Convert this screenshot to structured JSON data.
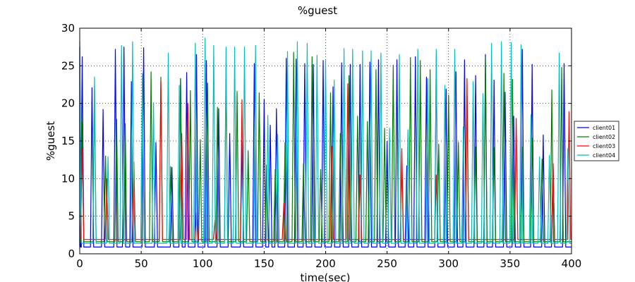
{
  "chart_data": {
    "type": "line",
    "title": "%guest",
    "xlabel": "time(sec)",
    "ylabel": "%guest",
    "xlim": [
      0,
      400
    ],
    "ylim": [
      0,
      30
    ],
    "xticks": [
      0,
      50,
      100,
      150,
      200,
      250,
      300,
      350,
      400
    ],
    "yticks": [
      0,
      5,
      10,
      15,
      20,
      25,
      30
    ],
    "grid": true,
    "legend_position": "right",
    "series": [
      {
        "name": "client01",
        "color": "#0000ff",
        "baseline": 0.9,
        "x": [
          0,
          2,
          10,
          19,
          29,
          36,
          42,
          52,
          62,
          75,
          82,
          87,
          95,
          103,
          113,
          122,
          132,
          142,
          150,
          155,
          160,
          168,
          176,
          183,
          190,
          198,
          206,
          213,
          220,
          228,
          236,
          243,
          250,
          258,
          266,
          273,
          282,
          290,
          298,
          306,
          313,
          322,
          330,
          337,
          346,
          353,
          360,
          368,
          377,
          385,
          394
        ],
        "y": [
          27.5,
          26.2,
          22.1,
          19.2,
          27.2,
          27.5,
          22.9,
          27.4,
          14.8,
          11.5,
          23.3,
          24.1,
          26.5,
          25.7,
          19.3,
          16.0,
          14.9,
          25.3,
          20.5,
          17.1,
          19.3,
          26.0,
          25.9,
          25.3,
          25.2,
          25.7,
          22.2,
          25.4,
          25.2,
          25.2,
          25.5,
          25.8,
          14.9,
          25.8,
          11.7,
          26.2,
          23.5,
          26.0,
          21.9,
          24.2,
          25.8,
          23.7,
          26.5,
          23.1,
          21.5,
          18.3,
          27.2,
          25.2,
          15.8,
          11.9,
          25.3
        ]
      },
      {
        "name": "client02",
        "color": "#008000",
        "baseline": 1.6,
        "x": [
          2,
          12,
          21,
          30,
          37,
          44,
          51,
          58,
          66,
          74,
          82,
          90,
          98,
          104,
          112,
          119,
          128,
          137,
          146,
          152,
          159,
          167,
          174,
          182,
          189,
          196,
          204,
          212,
          219,
          226,
          234,
          241,
          248,
          255,
          262,
          269,
          277,
          285,
          292,
          300,
          308,
          315,
          322,
          330,
          337,
          345,
          352,
          360,
          368,
          376,
          384,
          392
        ],
        "y": [
          17.4,
          22.2,
          13.0,
          17.9,
          17.3,
          12.2,
          23.8,
          24.2,
          23.5,
          11.6,
          23.3,
          21.7,
          15.2,
          22.7,
          19.5,
          24.2,
          21.6,
          13.7,
          21.4,
          11.8,
          11.2,
          14.8,
          26.8,
          12.0,
          26.2,
          11.2,
          21.4,
          16.0,
          23.7,
          18.3,
          17.6,
          24.5,
          16.7,
          25.1,
          12.1,
          26.1,
          25.7,
          24.5,
          14.6,
          21.1,
          14.8,
          21.0,
          14.2,
          26.1,
          14.1,
          24.0,
          23.2,
          14.2,
          15.4,
          12.6,
          21.8,
          24.8
        ]
      },
      {
        "name": "client03",
        "color": "#ff0000",
        "baseline": 1.9,
        "x": [
          2,
          22,
          44,
          66,
          83,
          88,
          95,
          110,
          132,
          166,
          205,
          218,
          228,
          262,
          283,
          290,
          315,
          355,
          385,
          398
        ],
        "y": [
          14.0,
          10.0,
          10.0,
          23.0,
          16.0,
          20.0,
          5.5,
          4.5,
          20.5,
          6.7,
          14.3,
          22.6,
          10.5,
          14.0,
          23.3,
          10.5,
          23.3,
          18.0,
          12.0,
          18.9
        ]
      },
      {
        "name": "client04",
        "color": "#00bfbf",
        "baseline": 1.4,
        "x": [
          0,
          12,
          23,
          34,
          43,
          51,
          60,
          72,
          81,
          94,
          102,
          109,
          119,
          126,
          134,
          143,
          153,
          161,
          169,
          177,
          185,
          193,
          200,
          207,
          215,
          222,
          230,
          237,
          245,
          252,
          260,
          267,
          275,
          283,
          290,
          297,
          305,
          312,
          320,
          328,
          335,
          343,
          351,
          359,
          367,
          374,
          382,
          390,
          397
        ],
        "y": [
          28.3,
          23.5,
          12.9,
          27.7,
          28.2,
          24.0,
          20.1,
          26.7,
          22.4,
          28.0,
          28.7,
          27.7,
          27.5,
          27.5,
          27.5,
          27.7,
          18.4,
          15.9,
          26.9,
          28.2,
          28.0,
          26.4,
          25.7,
          23.1,
          27.3,
          27.2,
          27.0,
          27.0,
          26.7,
          16.7,
          26.5,
          16.5,
          27.2,
          23.3,
          27.2,
          22.4,
          27.2,
          16.9,
          22.9,
          21.3,
          28.0,
          28.2,
          28.1,
          27.8,
          18.5,
          12.9,
          13.1,
          26.7,
          14.0
        ]
      }
    ]
  }
}
